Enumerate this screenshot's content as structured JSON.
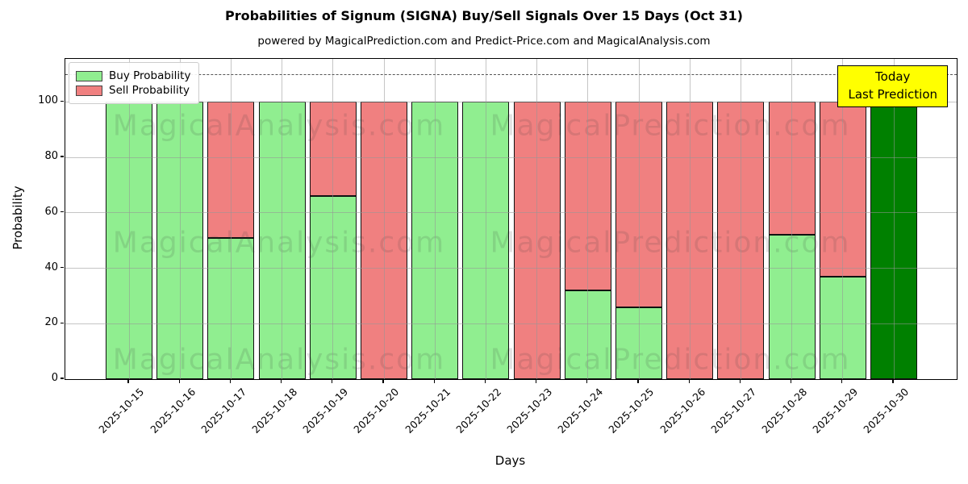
{
  "chart_data": {
    "type": "bar",
    "stacked": true,
    "title": "Probabilities of Signum (SIGNA) Buy/Sell Signals Over 15 Days (Oct 31)",
    "subtitle": "powered by MagicalPrediction.com and Predict-Price.com and MagicalAnalysis.com",
    "xlabel": "Days",
    "ylabel": "Probability",
    "ylim": [
      0,
      115.5
    ],
    "yticks": [
      0,
      20,
      40,
      60,
      80,
      100
    ],
    "grid": true,
    "dashed_line_y": 110,
    "categories": [
      "2025-10-15",
      "2025-10-16",
      "2025-10-17",
      "2025-10-18",
      "2025-10-19",
      "2025-10-20",
      "2025-10-21",
      "2025-10-22",
      "2025-10-23",
      "2025-10-24",
      "2025-10-25",
      "2025-10-26",
      "2025-10-27",
      "2025-10-28",
      "2025-10-29",
      "2025-10-30"
    ],
    "series": [
      {
        "name": "Buy Probability",
        "color": "#90EE90",
        "values": [
          100,
          100,
          51,
          100,
          66,
          0,
          100,
          100,
          0,
          32,
          26,
          0,
          0,
          52,
          37,
          100
        ]
      },
      {
        "name": "Sell Probability",
        "color": "#F08080",
        "values": [
          0,
          0,
          49,
          0,
          34,
          100,
          0,
          0,
          100,
          68,
          74,
          100,
          100,
          48,
          63,
          0
        ]
      }
    ],
    "today_bar": {
      "index": 15,
      "date": "2025-10-30",
      "color": "#008000"
    },
    "legend": {
      "position": "upper left",
      "items": [
        {
          "label": "Buy Probability",
          "color": "#90EE90"
        },
        {
          "label": "Sell Probability",
          "color": "#F08080"
        }
      ]
    },
    "annotation": {
      "lines": [
        "Today",
        "Last Prediction"
      ],
      "bg": "#FFFF00",
      "border": "#000000"
    }
  },
  "watermarks": {
    "texts": [
      "MagicalAnalysis.com",
      "MagicalPrediction.com"
    ]
  },
  "colors": {
    "bar_edge": "#111111",
    "dashed_line": "#555555",
    "grid": "#b0b0b0"
  }
}
